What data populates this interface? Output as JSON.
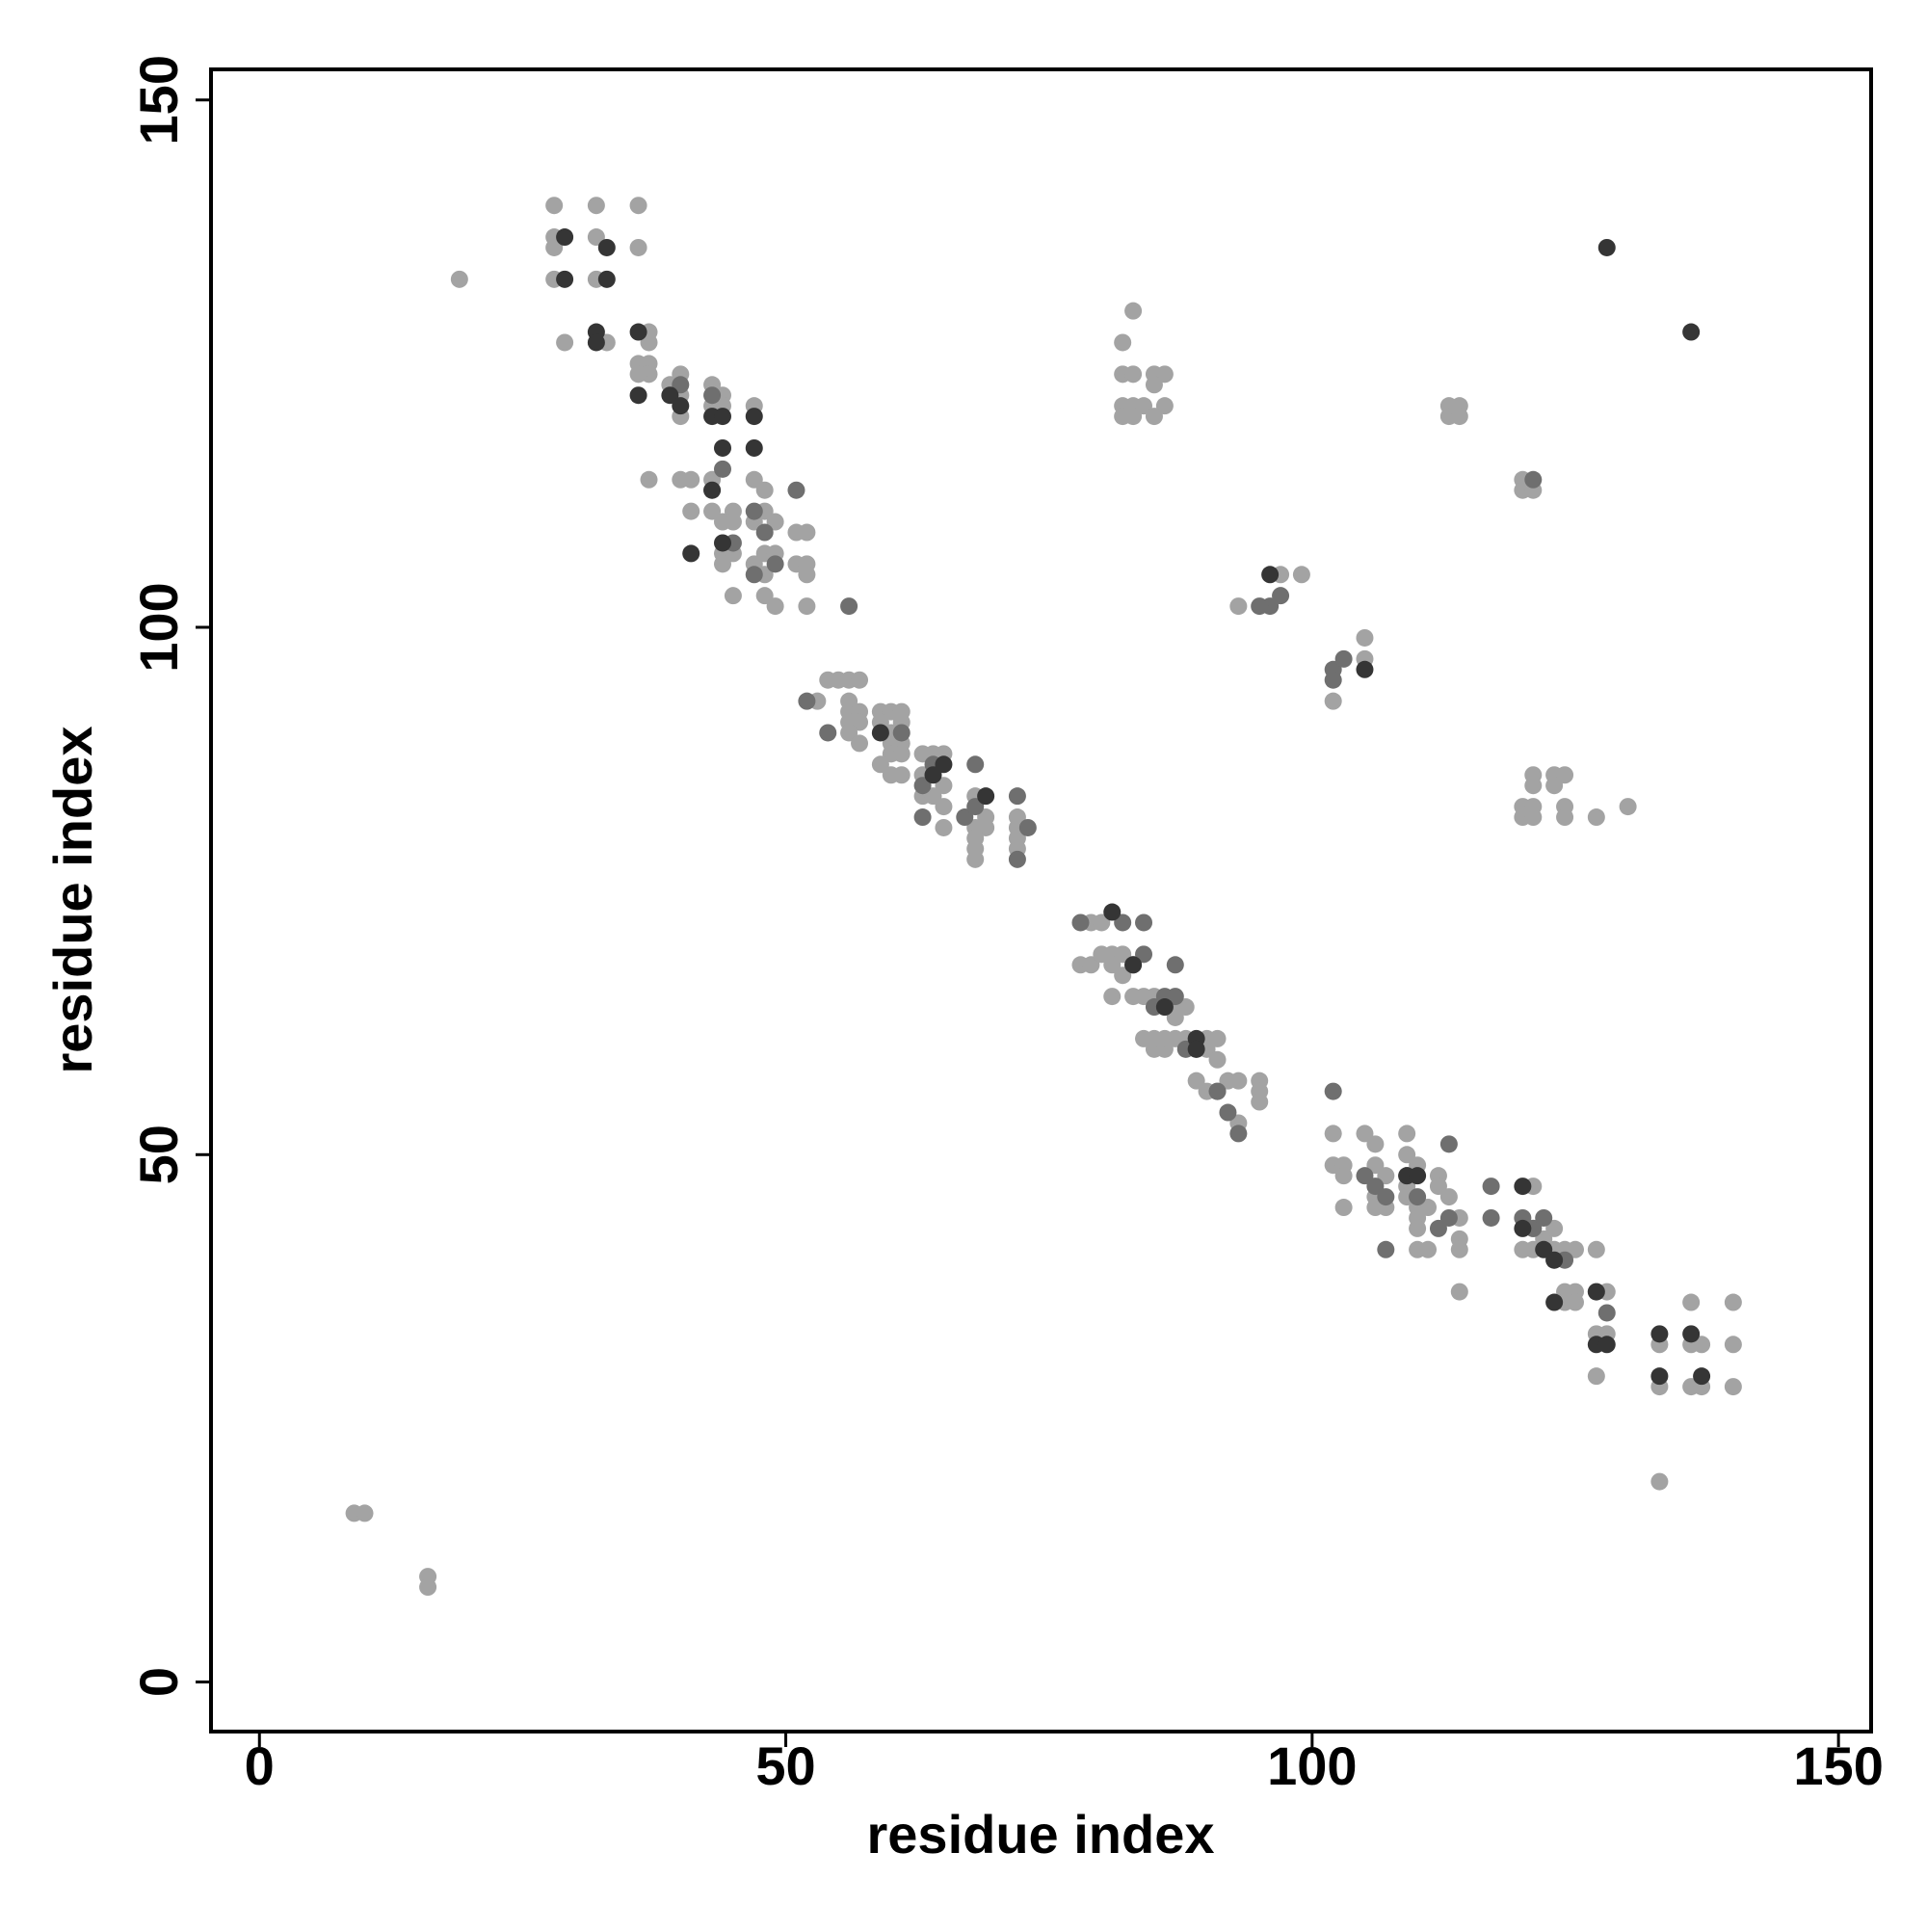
{
  "chart_data": {
    "type": "scatter",
    "xlabel": "residue index",
    "ylabel": "residue index",
    "xlim": [
      -4.6,
      153.1
    ],
    "ylim": [
      -4.7,
      152.9
    ],
    "xticks": [
      0,
      50,
      100,
      150
    ],
    "yticks": [
      0,
      50,
      100,
      150
    ],
    "series": [
      {
        "color": "#a3a3a3",
        "x": [
          28,
          32,
          36,
          28,
          32,
          28,
          36,
          19,
          28,
          32,
          29,
          33,
          37,
          37,
          36,
          37,
          37,
          36,
          39,
          40,
          40,
          43,
          44,
          44,
          47,
          40,
          43,
          37,
          40,
          41,
          43,
          43,
          47,
          48,
          41,
          43,
          45,
          44,
          45,
          47,
          48,
          49,
          51,
          52,
          44,
          45,
          48,
          49,
          44,
          47,
          48,
          51,
          52,
          45,
          48,
          49,
          52,
          52,
          54,
          55,
          56,
          57,
          53,
          56,
          56,
          57,
          56,
          57,
          56,
          57,
          59,
          60,
          61,
          59,
          60,
          61,
          60,
          61,
          60,
          61,
          59,
          60,
          61,
          63,
          64,
          65,
          63,
          65,
          63,
          64,
          65,
          65,
          68,
          69,
          68,
          69,
          68,
          68,
          72,
          72,
          72,
          72,
          68,
          79,
          80,
          78,
          79,
          80,
          81,
          82,
          81,
          82,
          81,
          83,
          84,
          85,
          86,
          87,
          88,
          84,
          85,
          85,
          86,
          86,
          87,
          88,
          89,
          90,
          91,
          90,
          91,
          89,
          90,
          91,
          92,
          93,
          95,
          95,
          95,
          93,
          87,
          102,
          102,
          103,
          103,
          103,
          105,
          106,
          106,
          107,
          106,
          106,
          107,
          109,
          109,
          110,
          109,
          109,
          110,
          110,
          111,
          110,
          110,
          111,
          112,
          112,
          113,
          114,
          114,
          114,
          114,
          121,
          121,
          122,
          123,
          120,
          121,
          123,
          124,
          125,
          123,
          124,
          125,
          124,
          125,
          127,
          127,
          128,
          127,
          128,
          127,
          133,
          133,
          136,
          136,
          137,
          136,
          137,
          140,
          140,
          140,
          133,
          83,
          82,
          82,
          83,
          85,
          86,
          85,
          82,
          83,
          84,
          86,
          82,
          83,
          85,
          113,
          114,
          113,
          114,
          120,
          120,
          121,
          97,
          99,
          93,
          105,
          105,
          102,
          121,
          123,
          124,
          121,
          123,
          120,
          121,
          120,
          121,
          124,
          124,
          127,
          130,
          9,
          10,
          16,
          16
        ],
        "values": [
          140,
          140,
          140,
          137,
          137,
          136,
          136,
          133,
          133,
          133,
          127,
          127,
          128,
          127,
          125,
          125,
          124,
          124,
          123,
          124,
          122,
          123,
          122,
          121,
          121,
          120,
          121,
          114,
          114,
          114,
          114,
          113,
          114,
          113,
          111,
          111,
          111,
          110,
          110,
          110,
          111,
          110,
          109,
          109,
          107,
          107,
          107,
          107,
          106,
          106,
          105,
          106,
          106,
          103,
          103,
          102,
          102,
          105,
          95,
          95,
          95,
          95,
          93,
          93,
          92,
          92,
          91,
          91,
          90,
          89,
          92,
          92,
          92,
          91,
          90,
          91,
          89,
          89,
          88,
          88,
          87,
          86,
          86,
          88,
          88,
          88,
          86,
          85,
          84,
          84,
          83,
          81,
          84,
          82,
          81,
          81,
          80,
          79,
          82,
          81,
          80,
          79,
          78,
          72,
          72,
          68,
          68,
          69,
          69,
          69,
          68,
          67,
          65,
          65,
          65,
          65,
          64,
          64,
          64,
          61,
          61,
          60,
          60,
          61,
          61,
          61,
          60,
          61,
          61,
          60,
          59,
          57,
          56,
          56,
          57,
          57,
          57,
          56,
          55,
          53,
          63,
          52,
          49,
          49,
          48,
          45,
          52,
          51,
          49,
          48,
          46,
          45,
          45,
          52,
          50,
          49,
          47,
          46,
          45,
          44,
          45,
          43,
          41,
          41,
          48,
          47,
          46,
          44,
          42,
          41,
          37,
          47,
          43,
          42,
          43,
          41,
          41,
          41,
          41,
          41,
          40,
          37,
          37,
          36,
          36,
          41,
          37,
          37,
          33,
          33,
          29,
          32,
          28,
          36,
          32,
          32,
          28,
          28,
          36,
          32,
          28,
          19,
          130,
          127,
          124,
          124,
          124,
          124,
          123,
          121,
          121,
          121,
          121,
          120,
          120,
          120,
          121,
          121,
          120,
          120,
          114,
          113,
          113,
          105,
          105,
          102,
          99,
          97,
          93,
          86,
          86,
          86,
          85,
          85,
          83,
          83,
          82,
          82,
          83,
          82,
          82,
          83,
          16,
          16,
          10,
          9
        ]
      },
      {
        "color": "#6f6f6f",
        "x": [
          40,
          43,
          44,
          47,
          48,
          45,
          47,
          49,
          56,
          51,
          52,
          54,
          61,
          64,
          63,
          67,
          68,
          72,
          73,
          63,
          72,
          68,
          78,
          82,
          84,
          83,
          84,
          85,
          87,
          87,
          86,
          88,
          92,
          91,
          93,
          105,
          106,
          107,
          109,
          110,
          112,
          113,
          117,
          117,
          113,
          107,
          120,
          121,
          122,
          124,
          128,
          102,
          121,
          96,
          95,
          97,
          102,
          102,
          103
        ],
        "values": [
          123,
          122,
          115,
          111,
          109,
          108,
          105,
          106,
          102,
          113,
          93,
          90,
          90,
          87,
          85,
          82,
          83,
          84,
          81,
          82,
          78,
          87,
          72,
          72,
          72,
          68,
          69,
          64,
          68,
          65,
          65,
          60,
          54,
          56,
          52,
          48,
          47,
          46,
          48,
          46,
          43,
          51,
          47,
          44,
          44,
          41,
          44,
          43,
          44,
          40,
          35,
          56,
          114,
          102,
          102,
          103,
          96,
          95,
          97
        ]
      },
      {
        "color": "#353535",
        "x": [
          29,
          33,
          29,
          33,
          32,
          32,
          36,
          36,
          39,
          40,
          43,
          44,
          47,
          44,
          47,
          43,
          41,
          44,
          59,
          64,
          65,
          69,
          81,
          83,
          86,
          89,
          89,
          120,
          120,
          122,
          123,
          123,
          127,
          127,
          128,
          133,
          133,
          136,
          137,
          109,
          110,
          128,
          136,
          96,
          105
        ],
        "values": [
          137,
          136,
          133,
          133,
          128,
          127,
          128,
          122,
          122,
          121,
          120,
          120,
          120,
          117,
          117,
          113,
          107,
          108,
          90,
          86,
          87,
          84,
          73,
          68,
          64,
          61,
          60,
          47,
          43,
          41,
          40,
          36,
          37,
          32,
          32,
          33,
          29,
          33,
          29,
          48,
          48,
          136,
          128,
          105,
          96
        ]
      }
    ]
  }
}
